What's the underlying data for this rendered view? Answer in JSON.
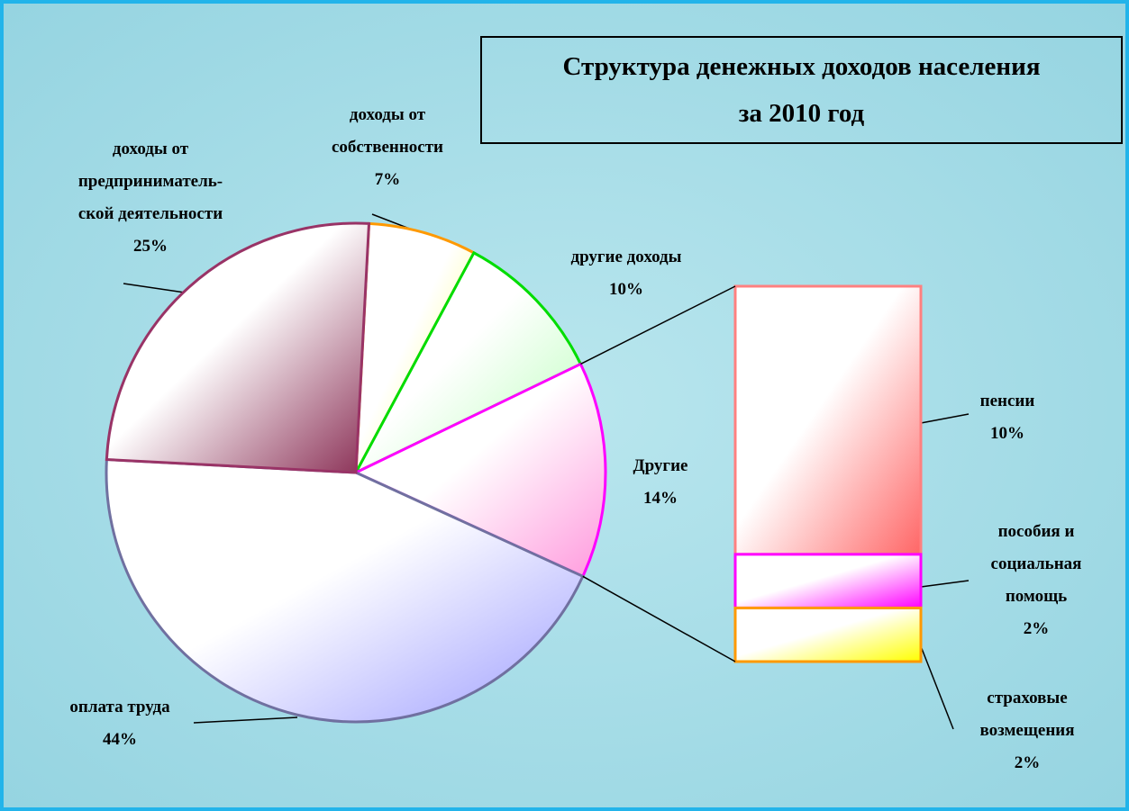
{
  "chart_data": {
    "type": "pie_of_bar",
    "title": "Структура денежных доходов населения\nза 2010 год",
    "categories": [
      "доходы от\nсобственности",
      "другие доходы",
      "Другие",
      "оплата труда",
      "доходы от\nпредприниматель-\nской деятельности"
    ],
    "values": [
      7,
      10,
      14,
      44,
      25
    ],
    "value_labels": [
      "7%",
      "10%",
      "14%",
      "44%",
      "25%"
    ],
    "colors": [
      "#ffff66",
      "#b8ffb8",
      "#ff99dd",
      "#9d9dff",
      "#8a2f55"
    ],
    "borders": [
      "#ff9900",
      "#00dd00",
      "#ff00ff",
      "#7070a0",
      "#993366"
    ],
    "bar": {
      "categories": [
        "пенсии",
        "пособия и\nсоциальная\nпомощь",
        "страховые\nвозмещения"
      ],
      "values": [
        10,
        2,
        2
      ],
      "value_labels": [
        "10%",
        "2%",
        "2%"
      ],
      "colors": [
        "#ff6666",
        "#ff00ff",
        "#ffff00"
      ],
      "borders": [
        "#ff8080",
        "#ff00ff",
        "#ff9900"
      ]
    }
  }
}
